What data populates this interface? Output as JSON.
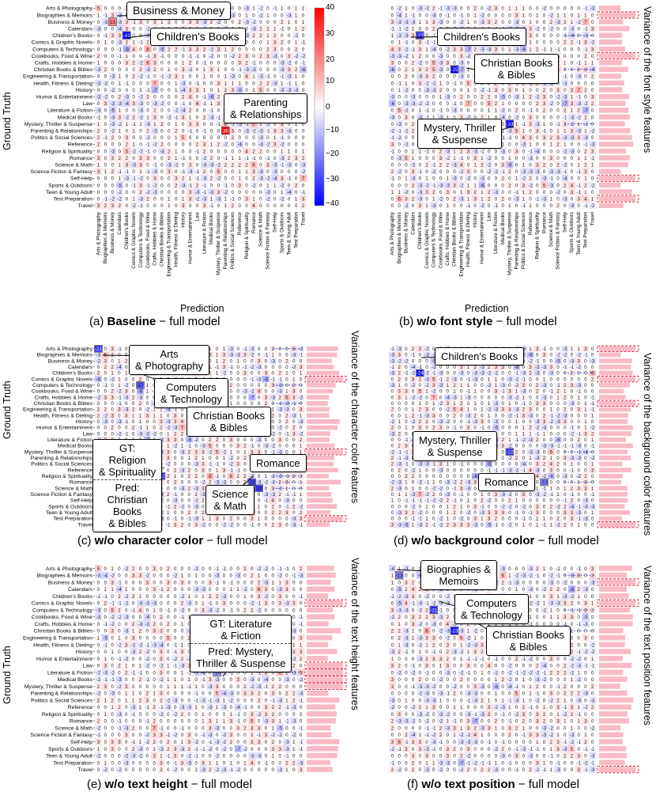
{
  "categories": [
    "Arts & Photography",
    "Biographies & Memoirs",
    "Business & Money",
    "Calendars",
    "Children's Books",
    "Comics & Graphic Novels",
    "Computers & Technology",
    "Cookbooks, Food & Wine",
    "Crafts, Hobbies & Home",
    "Christian Books & Bibles",
    "Engineering & Transportation",
    "Health, Fitness & Dieting",
    "History",
    "Humor & Entertainment",
    "Law",
    "Literature & Fiction",
    "Medical Books",
    "Mystery, Thriller & Suspense",
    "Parenting & Relationships",
    "Politics & Social Sciences",
    "Reference",
    "Religion & Spirituality",
    "Romance",
    "Science & Math",
    "Science Fiction & Fantasy",
    "Self-Help",
    "Sports & Outdoors",
    "Teen & Young Adult",
    "Test Preparation",
    "Travel"
  ],
  "axis": {
    "ylabel": "Ground Truth",
    "xlabel": "Prediction"
  },
  "colorbar": {
    "ticks": [
      "40",
      "30",
      "20",
      "10",
      "0",
      "−10",
      "−20",
      "−30",
      "−40"
    ],
    "min": -40,
    "max": 40
  },
  "panels": [
    {
      "id": "a",
      "caption_prefix": "(a) ",
      "caption_bold": "Baseline",
      "caption_suffix": " − full model",
      "side_label": "",
      "callouts": [
        {
          "lines": [
            "Business & Money"
          ]
        },
        {
          "lines": [
            "Children's Books"
          ]
        },
        {
          "lines": [
            "Parenting",
            "& Relationships"
          ]
        }
      ]
    },
    {
      "id": "b",
      "caption_prefix": "(b) ",
      "caption_bold": "w/o font style",
      "caption_suffix": " − full model",
      "side_label": "Variance of the font style features",
      "callouts": [
        {
          "lines": [
            "Children's Books"
          ]
        },
        {
          "lines": [
            "Christian Books",
            "& Bibles"
          ]
        },
        {
          "lines": [
            "Mystery, Thriller",
            "& Suspense"
          ]
        }
      ]
    },
    {
      "id": "c",
      "caption_prefix": "(c) ",
      "caption_bold": "w/o character color",
      "caption_suffix": " − full model",
      "side_label": "Variance of the character color features",
      "callouts": [
        {
          "lines": [
            "Arts",
            "& Photography"
          ]
        },
        {
          "lines": [
            "Computers",
            "& Technology"
          ]
        },
        {
          "lines": [
            "Christian Books",
            "& Bibles"
          ]
        },
        {
          "lines": [
            "GT:",
            "Religion",
            "& Spirituality"
          ],
          "sep_after": 3,
          "lines2": [
            "Pred:",
            "Christian",
            "Books",
            "& Bibles"
          ]
        },
        {
          "lines": [
            "Romance"
          ]
        },
        {
          "lines": [
            "Science",
            "& Math"
          ]
        }
      ]
    },
    {
      "id": "d",
      "caption_prefix": "(d) ",
      "caption_bold": "w/o background color",
      "caption_suffix": " − full model",
      "side_label": "Variance of the background color features",
      "callouts": [
        {
          "lines": [
            "Children's Books"
          ]
        },
        {
          "lines": [
            "Mystery, Thriller",
            "& Suspense"
          ]
        },
        {
          "lines": [
            "Romance"
          ]
        }
      ]
    },
    {
      "id": "e",
      "caption_prefix": "(e) ",
      "caption_bold": "w/o text height",
      "caption_suffix": " − full model",
      "side_label": "Variance of the text height features",
      "callouts": [
        {
          "lines": [
            "GT: Literature",
            "& Fiction"
          ],
          "lines2": [
            "Pred: Mystery,",
            "Thriller & Suspense"
          ]
        }
      ]
    },
    {
      "id": "f",
      "caption_prefix": "(f) ",
      "caption_bold": "w/o text position",
      "caption_suffix": " − full model",
      "side_label": "Variance of the text position features",
      "callouts": [
        {
          "lines": [
            "Biographies &",
            "Memoirs"
          ]
        },
        {
          "lines": [
            "Computers",
            "& Technology"
          ]
        },
        {
          "lines": [
            "Christian Books",
            "& Bibles"
          ]
        }
      ]
    }
  ],
  "chart_data": {
    "type": "heatmap",
    "description": "Six confusion-difference matrices (30x30 book genres), ground truth vs prediction, colour scale -40 (blue) to 40 (red); panels b-f include per-genre feature-variance bar columns.",
    "value_range": [
      -40,
      40
    ],
    "highlights": {
      "a": [
        {
          "row": 2,
          "col": 2,
          "value": 13
        },
        {
          "row": 4,
          "col": 4,
          "value": -41
        },
        {
          "row": 18,
          "col": 18,
          "value": 36
        }
      ],
      "b": [
        {
          "row": 4,
          "col": 4,
          "value": -21
        },
        {
          "row": 9,
          "col": 9,
          "value": -25
        },
        {
          "row": 17,
          "col": 17,
          "value": -33
        }
      ],
      "c": [
        {
          "row": 0,
          "col": 0,
          "value": -21
        },
        {
          "row": 6,
          "col": 6,
          "value": -17
        },
        {
          "row": 9,
          "col": 9,
          "value": -24
        },
        {
          "row": 21,
          "col": 9,
          "value": -22
        },
        {
          "row": 22,
          "col": 22,
          "value": -18
        },
        {
          "row": 23,
          "col": 23,
          "value": -20
        }
      ],
      "d": [
        {
          "row": 4,
          "col": 4,
          "value": -24
        },
        {
          "row": 17,
          "col": 17,
          "value": -22
        },
        {
          "row": 22,
          "col": 22,
          "value": -13
        }
      ],
      "e": [
        {
          "row": 15,
          "col": 17,
          "value": -10
        }
      ],
      "f": [
        {
          "row": 1,
          "col": 1,
          "value": -13
        },
        {
          "row": 6,
          "col": 6,
          "value": -21
        },
        {
          "row": 9,
          "col": 9,
          "value": -23
        }
      ]
    },
    "variance_outliers": {
      "b": [
        1,
        7,
        25,
        28
      ],
      "c": [
        5,
        17,
        28
      ],
      "d": [
        0,
        5,
        9,
        29
      ],
      "e": [
        5,
        14,
        15,
        16,
        17
      ],
      "f": [
        2,
        5,
        29
      ]
    }
  }
}
